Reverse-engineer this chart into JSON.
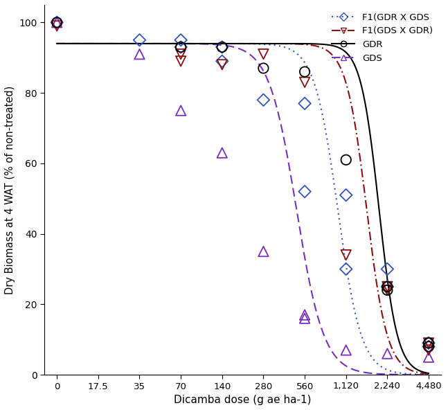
{
  "xlabel": "Dicamba dose (g ae ha⁻¹)",
  "xlabel_plain": "Dicamba dose (g ae ha-1)",
  "ylabel": "Dry Biomass at 4 WAT (% of non-treated)",
  "x_doses": [
    0,
    17.5,
    35,
    70,
    140,
    280,
    560,
    1120,
    2240,
    4480
  ],
  "x_tick_labels": [
    "0",
    "17.5",
    "35",
    "70",
    "140",
    "280",
    "560",
    "1,120",
    "2,240",
    "4,480"
  ],
  "ylim": [
    0,
    105
  ],
  "yticks": [
    0,
    20,
    40,
    60,
    80,
    100
  ],
  "series": {
    "F1_GDR_X_GDS": {
      "label": "F1(GDR X GDS",
      "color": "#3355bb",
      "linestyle": "dotted",
      "marker": "D",
      "markersize": 6,
      "data_doses": [
        0,
        35,
        70,
        70,
        140,
        140,
        280,
        560,
        560,
        1120,
        1120,
        2240,
        2240,
        4480,
        4480
      ],
      "data_y": [
        100,
        95,
        95,
        93,
        93,
        89,
        78,
        77,
        52,
        51,
        30,
        30,
        25,
        9,
        8
      ]
    },
    "F1_GDS_X_GDR": {
      "label": "F1(GDS X GDR)",
      "color": "#8B1111",
      "linestyle": "dashdot",
      "marker": "v",
      "markersize": 7,
      "data_doses": [
        0,
        70,
        70,
        140,
        280,
        560,
        1120,
        2240,
        2240,
        4480,
        4480
      ],
      "data_y": [
        99,
        91,
        89,
        88,
        91,
        83,
        34,
        25,
        24,
        9,
        7
      ]
    },
    "GDR": {
      "label": "GDR",
      "color": "#000000",
      "linestyle": "solid",
      "marker": "o",
      "markersize": 7,
      "data_doses": [
        0,
        70,
        140,
        280,
        560,
        1120,
        2240,
        2240,
        4480,
        4480
      ],
      "data_y": [
        100,
        93,
        93,
        87,
        86,
        61,
        25,
        24,
        9,
        8
      ]
    },
    "GDS": {
      "label": "GDS",
      "color": "#7B2FBE",
      "linestyle": "dashed",
      "marker": "^",
      "markersize": 7,
      "data_doses": [
        0,
        35,
        70,
        140,
        280,
        560,
        560,
        1120,
        2240,
        4480
      ],
      "data_y": [
        100,
        91,
        75,
        63,
        35,
        17,
        16,
        7,
        6,
        5
      ]
    }
  },
  "curve_params": {
    "F1_GDR_X_GDS": {
      "upper": 94,
      "lower": 0,
      "ed50_idx": 6.8,
      "slope": 3.5
    },
    "F1_GDS_X_GDR": {
      "upper": 94,
      "lower": 0,
      "ed50_idx": 7.5,
      "slope": 4.0
    },
    "GDR": {
      "upper": 94,
      "lower": 0,
      "ed50_idx": 7.8,
      "slope": 4.5
    },
    "GDS": {
      "upper": 94,
      "lower": 0,
      "ed50_idx": 5.8,
      "slope": 3.0
    }
  }
}
